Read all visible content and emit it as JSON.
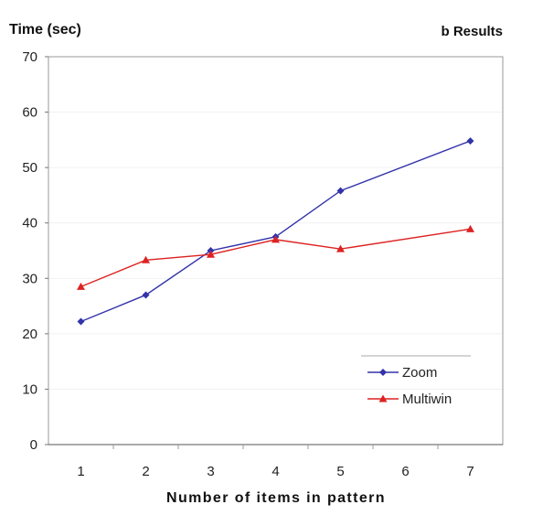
{
  "chart_data": {
    "type": "line",
    "title": "b Results",
    "ylabel": "Time (sec)",
    "xlabel": "Number of items in pattern",
    "ylim": [
      0,
      70
    ],
    "yticks": [
      0,
      10,
      20,
      30,
      40,
      50,
      60,
      70
    ],
    "xlim": [
      0.5,
      7.5
    ],
    "xticks": [
      1,
      2,
      3,
      4,
      5,
      6,
      7
    ],
    "grid": "horizontal",
    "legend": "bottom-right",
    "series": [
      {
        "name": "Zoom",
        "color": "#3333aa",
        "marker": "diamond",
        "x": [
          1,
          2,
          3,
          4,
          5,
          7
        ],
        "y": [
          22.2,
          27.0,
          35.0,
          37.5,
          45.8,
          54.8
        ]
      },
      {
        "name": "Multiwin",
        "color": "#dd2222",
        "marker": "triangle",
        "x": [
          1,
          2,
          3,
          4,
          5,
          7
        ],
        "y": [
          28.5,
          33.3,
          34.3,
          37.0,
          35.3,
          38.9
        ]
      }
    ]
  }
}
